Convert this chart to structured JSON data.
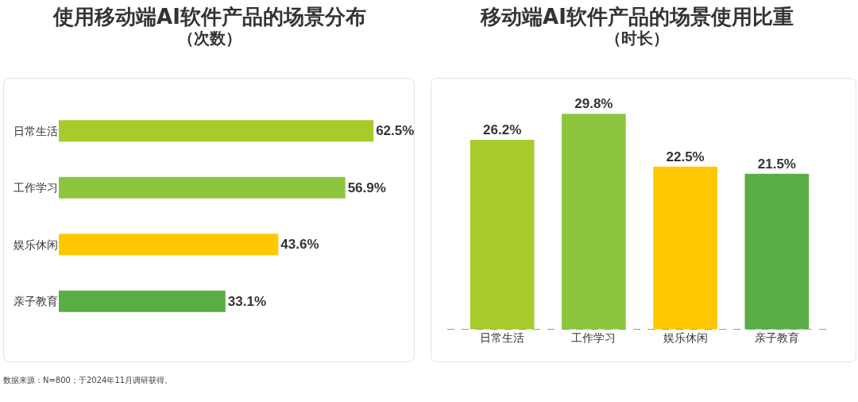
{
  "chart_data": [
    {
      "type": "bar",
      "title": "使用移动端AI软件产品的场景分布",
      "subtitle": "（次数）",
      "orientation": "horizontal",
      "categories": [
        "日常生活",
        "工作学习",
        "娱乐休闲",
        "亲子教育"
      ],
      "values": [
        62.5,
        56.9,
        43.6,
        33.1
      ],
      "colors": [
        "#a6cb2a",
        "#8cc63f",
        "#ffc800",
        "#5aac44"
      ],
      "value_labels": [
        "62.5%",
        "56.9%",
        "43.6%",
        "33.1%"
      ],
      "tick_labels": "y",
      "grid": false,
      "annotations": [
        "数据来源：N=800；于2024年11月调研获得。"
      ]
    },
    {
      "type": "bar",
      "title": "移动端AI软件产品的场景使用比重",
      "subtitle": "（时长）",
      "categories": [
        "日常生活",
        "工作学习",
        "娱乐休闲",
        "亲子教育"
      ],
      "values": [
        26.2,
        29.8,
        22.5,
        21.5
      ],
      "colors": [
        "#a6cb2a",
        "#8cc63f",
        "#ffc800",
        "#5aac44"
      ],
      "value_labels": [
        "26.2%",
        "29.8%",
        "22.5%",
        "21.5%"
      ],
      "tick_labels": "x",
      "grid": false
    }
  ]
}
